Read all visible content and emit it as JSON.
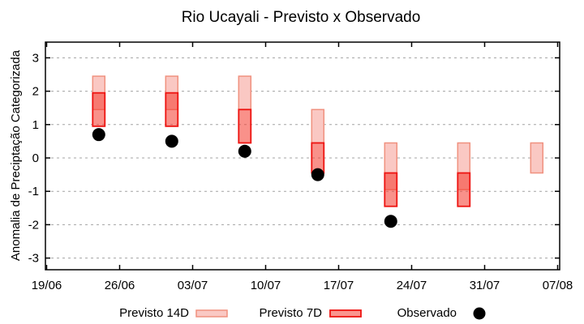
{
  "window": {
    "background": "#ffffff"
  },
  "chart_data": {
    "type": "bar",
    "title": "Rio Ucayali - Previsto x Observado",
    "ylabel": "Anomalia de Preciptação Categorizada",
    "xlabel": "",
    "x_tick_labels": [
      "19/06",
      "26/06",
      "03/07",
      "10/07",
      "17/07",
      "24/07",
      "31/07",
      "07/08"
    ],
    "y_ticks": [
      3,
      2,
      1,
      0,
      -1,
      -2,
      -3
    ],
    "ylim": [
      -3.35,
      3.47
    ],
    "grid": "horizontal-dashed",
    "legend_position": "bottom-center",
    "series": [
      {
        "name": "Previsto 14D",
        "type": "range-bar",
        "fill": "#fac8c3",
        "border": "#f0917f"
      },
      {
        "name": "Previsto 7D",
        "type": "range-bar",
        "fill": "rgba(245,62,50,0.57)",
        "border": "#ee1411"
      },
      {
        "name": "Observado",
        "type": "point",
        "color": "#000000"
      }
    ],
    "groups": [
      {
        "date": "24/06",
        "previsto_14d": [
          1.45,
          2.45
        ],
        "previsto_7d": [
          0.95,
          1.95
        ],
        "observado": 0.7
      },
      {
        "date": "01/07",
        "previsto_14d": [
          1.45,
          2.45
        ],
        "previsto_7d": [
          0.95,
          1.95
        ],
        "observado": 0.5
      },
      {
        "date": "08/07",
        "previsto_14d": [
          1.45,
          2.45
        ],
        "previsto_7d": [
          0.45,
          1.45
        ],
        "observado": 0.2
      },
      {
        "date": "15/07",
        "previsto_14d": [
          0.45,
          1.45
        ],
        "previsto_7d": [
          -0.45,
          0.45
        ],
        "observado": -0.5
      },
      {
        "date": "22/07",
        "previsto_14d": [
          -0.95,
          0.45
        ],
        "previsto_7d": [
          -1.45,
          -0.45
        ],
        "observado": -1.9
      },
      {
        "date": "29/07",
        "previsto_14d": [
          -0.95,
          0.45
        ],
        "previsto_7d": [
          -1.45,
          -0.45
        ],
        "observado": null
      },
      {
        "date": "05/08",
        "previsto_14d": [
          -0.45,
          0.45
        ],
        "previsto_7d": null,
        "observado": null
      }
    ],
    "legend": [
      {
        "label": "Previsto 14D",
        "swatch": "light-pink-box"
      },
      {
        "label": "Previsto 7D",
        "swatch": "red-box"
      },
      {
        "label": "Observado",
        "swatch": "black-dot"
      }
    ],
    "colors": {
      "previsto_14d_fill": "#fac8c3",
      "previsto_14d_border": "#f0917f",
      "previsto_7d_fill": "rgba(245,62,50,0.57)",
      "previsto_7d_border": "#ee1411",
      "overlap_fill": "#f4766c",
      "observado": "#000000",
      "grid": "#a3a3a3",
      "frame": "#000000"
    }
  }
}
